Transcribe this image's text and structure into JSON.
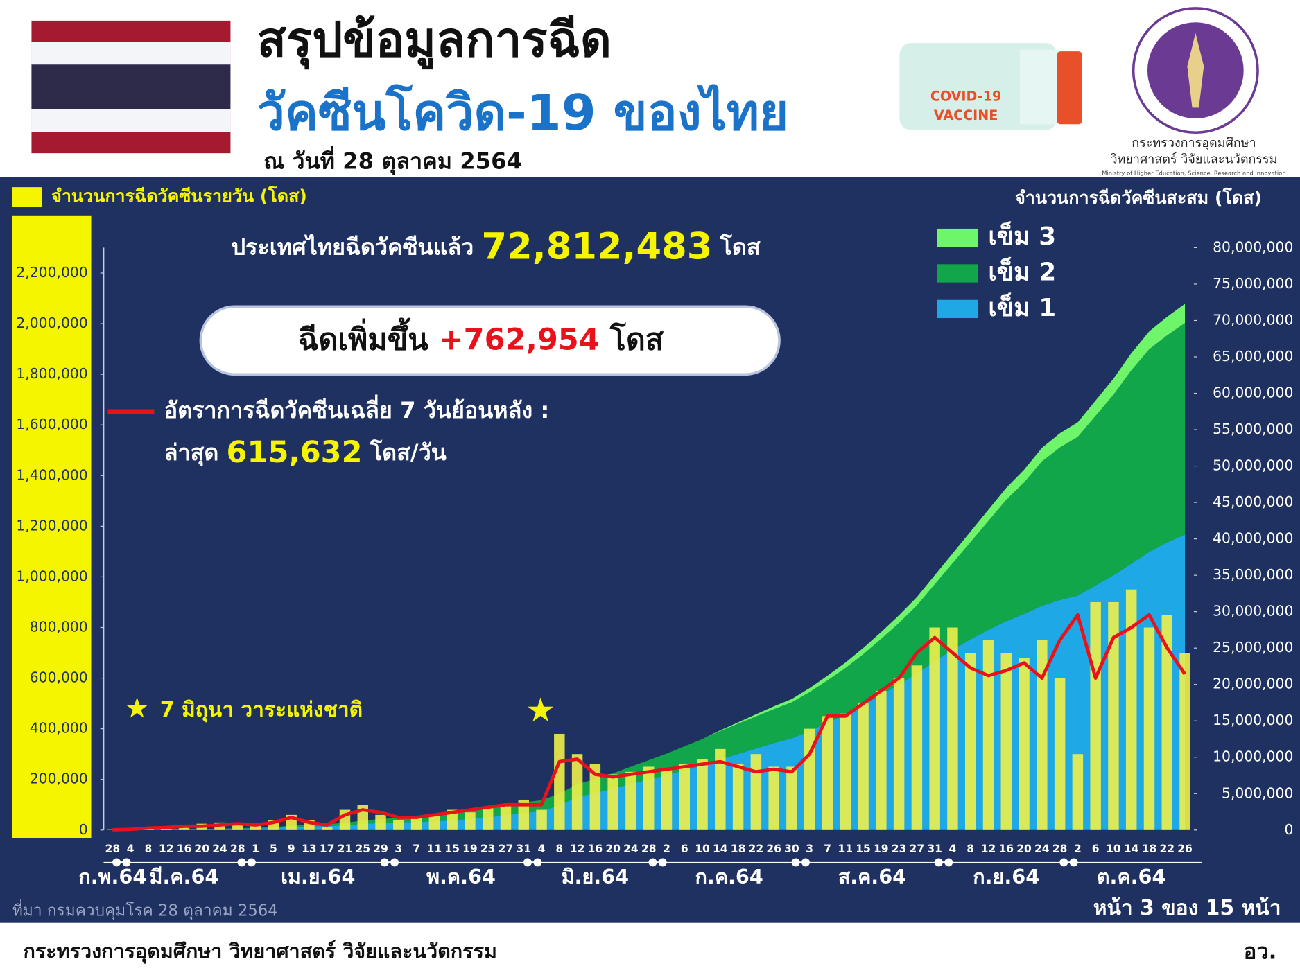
{
  "header": {
    "title_line1": "สรุปข้อมูลการฉีด",
    "title_line2": "วัคซีนโควิด-19 ของไทย",
    "date": "ณ วันที่ 28 ตุลาคม 2564",
    "vaccine_line1": "COVID-19",
    "vaccine_line2": "VACCINE",
    "ministry_th1": "กระทรวงการอุดมศึกษา",
    "ministry_th2": "วิทยาศาสตร์ วิจัยและนวัตกรรม",
    "ministry_en": "Ministry of Higher Education, Science, Research and Innovation"
  },
  "chart_data": {
    "type": "combo",
    "y_label": "จำนวนการฉีดวัคซีนรายวัน (โดส)",
    "y2_label": "จำนวนการฉีดวัคซีนสะสม (โดส)",
    "annotations": {
      "total_prefix": "ประเทศไทยฉีดวัคซีนแล้ว",
      "total_value": "72,812,483",
      "total_unit": "โดส",
      "increase_prefix": "ฉีดเพิ่มขึ้น",
      "increase_value": "+762,954",
      "increase_unit": "โดส",
      "latest_prefix": "ล่าสุด",
      "latest_value": "615,632",
      "latest_unit": "โดส/วัน",
      "star_note": "7 มิถุนา วาระแห่งชาติ"
    },
    "categories": [
      "28",
      "4",
      "8",
      "12",
      "16",
      "20",
      "24",
      "28",
      "1",
      "5",
      "9",
      "13",
      "17",
      "21",
      "25",
      "29",
      "3",
      "7",
      "11",
      "15",
      "19",
      "23",
      "27",
      "31",
      "4",
      "8",
      "12",
      "16",
      "20",
      "24",
      "28",
      "2",
      "6",
      "10",
      "14",
      "18",
      "22",
      "26",
      "30",
      "3",
      "7",
      "11",
      "15",
      "19",
      "23",
      "27",
      "31",
      "4",
      "8",
      "12",
      "16",
      "20",
      "24",
      "28",
      "2",
      "6",
      "10",
      "14",
      "18",
      "22",
      "26"
    ],
    "months": [
      "ก.พ.64",
      "มี.ค.64",
      "เม.ย.64",
      "พ.ค.64",
      "มิ.ย.64",
      "ก.ค.64",
      "ส.ค.64",
      "ก.ย.64",
      "ต.ค.64"
    ],
    "series": [
      {
        "name": "เข็ม 1",
        "type": "area",
        "axis": "y2",
        "color": "#1ea9e6",
        "values": [
          0,
          20000,
          50000,
          70000,
          100000,
          130000,
          160000,
          190000,
          210000,
          280000,
          420000,
          520000,
          550000,
          650000,
          850000,
          970000,
          1050000,
          1120000,
          1200000,
          1350000,
          1550000,
          1750000,
          2050000,
          2350000,
          2600000,
          3400000,
          4550000,
          5100000,
          5700000,
          6350000,
          6950000,
          7550000,
          8200000,
          8850000,
          9700000,
          10450000,
          11200000,
          11950000,
          12600000,
          13600000,
          14750000,
          15900000,
          17200000,
          18600000,
          20000000,
          21500000,
          23200000,
          24800000,
          26200000,
          27500000,
          28700000,
          29700000,
          30800000,
          31600000,
          32200000,
          33600000,
          35000000,
          36600000,
          38200000,
          39500000,
          40600000
        ]
      },
      {
        "name": "เข็ม 2",
        "type": "area",
        "axis": "y2",
        "color": "#12a64a",
        "values": [
          0,
          0,
          0,
          10000,
          20000,
          30000,
          40000,
          60000,
          90000,
          120000,
          180000,
          230000,
          250000,
          350000,
          450000,
          530000,
          650000,
          780000,
          900000,
          1050000,
          1150000,
          1250000,
          1350000,
          1450000,
          1500000,
          1600000,
          1750000,
          1900000,
          2100000,
          2350000,
          2650000,
          2950000,
          3300000,
          3650000,
          3900000,
          4150000,
          4400000,
          4650000,
          4950000,
          5350000,
          5800000,
          6350000,
          6950000,
          7650000,
          8450000,
          9350000,
          10550000,
          11850000,
          13350000,
          14950000,
          16650000,
          18050000,
          19850000,
          20950000,
          21800000,
          23300000,
          24800000,
          26550000,
          27850000,
          28450000,
          29050000
        ]
      },
      {
        "name": "เข็ม 3",
        "type": "area",
        "axis": "y2",
        "color": "#6ef56a",
        "values": [
          0,
          0,
          0,
          0,
          0,
          0,
          0,
          0,
          0,
          0,
          0,
          0,
          0,
          0,
          0,
          0,
          0,
          0,
          0,
          0,
          0,
          0,
          0,
          0,
          0,
          0,
          0,
          0,
          0,
          0,
          0,
          0,
          0,
          0,
          100000,
          200000,
          300000,
          400000,
          450000,
          550000,
          650000,
          750000,
          850000,
          950000,
          1050000,
          1150000,
          1250000,
          1350000,
          1450000,
          1550000,
          1650000,
          1750000,
          1850000,
          1950000,
          2000000,
          2100000,
          2200000,
          2350000,
          2450000,
          2550000,
          2650000
        ]
      },
      {
        "name": "จำนวนการฉีดวัคซีนรายวัน (โดส)",
        "type": "bar",
        "color": "#eef04a",
        "values": [
          1000,
          5000,
          10000,
          15000,
          20000,
          25000,
          30000,
          20000,
          20000,
          40000,
          60000,
          40000,
          10000,
          80000,
          100000,
          60000,
          40000,
          50000,
          60000,
          80000,
          70000,
          90000,
          100000,
          120000,
          80000,
          380000,
          300000,
          260000,
          220000,
          230000,
          250000,
          240000,
          260000,
          280000,
          320000,
          260000,
          300000,
          250000,
          250000,
          400000,
          450000,
          460000,
          500000,
          550000,
          600000,
          650000,
          800000,
          800000,
          700000,
          750000,
          700000,
          680000,
          750000,
          600000,
          300000,
          900000,
          900000,
          950000,
          800000,
          850000,
          700000
        ]
      },
      {
        "name": "อัตราการฉีดวัคซีนเฉลี่ย 7 วันย้อนหลัง :",
        "type": "line",
        "color": "#e8121c",
        "values": [
          1000,
          3000,
          8000,
          10000,
          15000,
          15000,
          20000,
          25000,
          20000,
          30000,
          50000,
          30000,
          20000,
          60000,
          80000,
          70000,
          50000,
          50000,
          60000,
          70000,
          80000,
          90000,
          100000,
          100000,
          100000,
          270000,
          280000,
          220000,
          210000,
          220000,
          230000,
          240000,
          250000,
          260000,
          270000,
          250000,
          230000,
          240000,
          230000,
          300000,
          450000,
          450000,
          500000,
          550000,
          600000,
          700000,
          760000,
          700000,
          640000,
          610000,
          630000,
          660000,
          600000,
          750000,
          850000,
          600000,
          760000,
          800000,
          850000,
          720000,
          615632
        ]
      }
    ],
    "ylim": [
      0,
      2300000
    ],
    "yticks": [
      0,
      {
        "value": 200000,
        "label": "200,000"
      },
      {
        "value": 400000,
        "label": "400,000"
      },
      {
        "value": 600000,
        "label": "600,000"
      },
      {
        "value": 800000,
        "label": "800,000"
      },
      {
        "value": 1000000,
        "label": "1,000,000"
      },
      {
        "value": 1200000,
        "label": "1,200,000"
      },
      {
        "value": 1400000,
        "label": "1,400,000"
      },
      {
        "value": 1600000,
        "label": "1,600,000"
      },
      {
        "value": 1800000,
        "label": "1,800,000"
      },
      {
        "value": 2000000,
        "label": "2,000,000"
      },
      {
        "value": 2200000,
        "label": "2,200,000"
      }
    ],
    "y2lim": [
      0,
      80000000
    ],
    "y2ticks": [
      0,
      {
        "value": 5000000,
        "label": "5,000,000"
      },
      {
        "value": 10000000,
        "label": "10,000,000"
      },
      {
        "value": 15000000,
        "label": "15,000,000"
      },
      {
        "value": 20000000,
        "label": "20,000,000"
      },
      {
        "value": 25000000,
        "label": "25,000,000"
      },
      {
        "value": 30000000,
        "label": "30,000,000"
      },
      {
        "value": 35000000,
        "label": "35,000,000"
      },
      {
        "value": 40000000,
        "label": "40,000,000"
      },
      {
        "value": 45000000,
        "label": "45,000,000"
      },
      {
        "value": 50000000,
        "label": "50,000,000"
      },
      {
        "value": 55000000,
        "label": "55,000,000"
      },
      {
        "value": 60000000,
        "label": "60,000,000"
      },
      {
        "value": 65000000,
        "label": "65,000,000"
      },
      {
        "value": 70000000,
        "label": "70,000,000"
      },
      {
        "value": 75000000,
        "label": "75,000,000"
      },
      {
        "value": 80000000,
        "label": "80,000,000"
      }
    ]
  },
  "footer": {
    "source": "ที่มา กรมควบคุมโรค 28 ตุลาคม 2564",
    "page": "หน้า 3 ของ 15 หน้า",
    "ministry": "กระทรวงการอุดมศึกษา วิทยาศาสตร์ วิจัยและนวัตกรรม",
    "abbr": "อว."
  }
}
